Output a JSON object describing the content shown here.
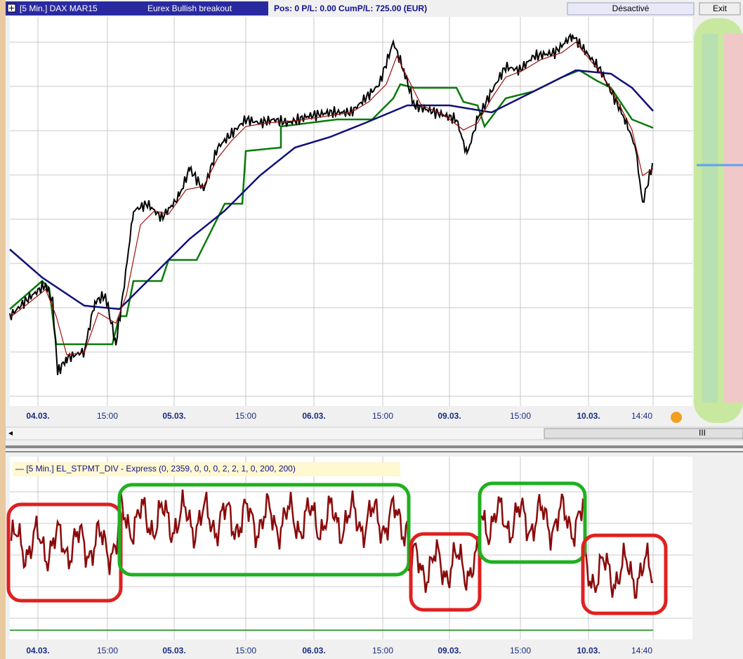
{
  "header": {
    "instrument": "[5 Min.] DAX MAR15",
    "strategy": "Eurex Bullish breakout",
    "position": "Pos: 0  P/L: 0.00  CumP/L: 725.00 (EUR)"
  },
  "buttons": {
    "status": "Désactivé",
    "exit": "Exit"
  },
  "time_axis": [
    "04.03.",
    "15:00",
    "05.03.",
    "15:00",
    "06.03.",
    "15:00",
    "09.03.",
    "15:00",
    "10.03.",
    "14:40"
  ],
  "scrollbar": "III",
  "indicator": "— [5 Min.] EL_STPMT_DIV - Express  (0, 2359, 0, 0, 0, 2, 2, 1, 0, 200, 200)"
}
